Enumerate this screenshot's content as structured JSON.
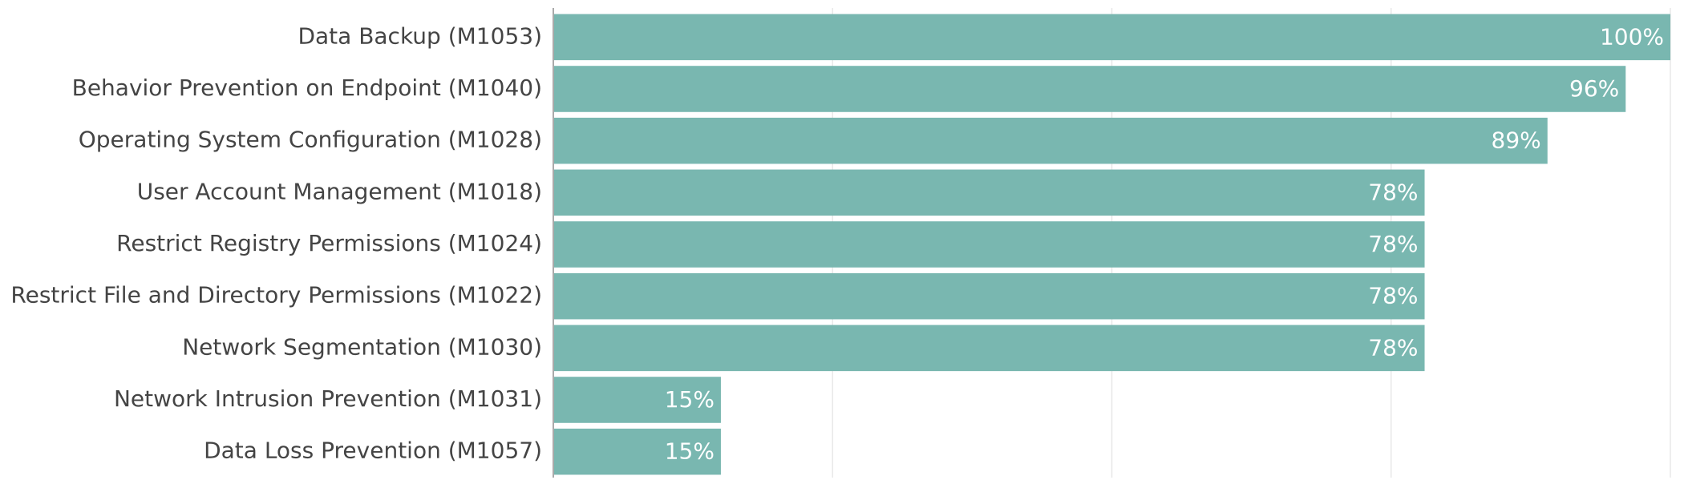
{
  "chart_data": {
    "type": "hbar",
    "categories": [
      "Data Backup (M1053)",
      "Behavior Prevention on Endpoint (M1040)",
      "Operating System Configuration (M1028)",
      "User Account Management (M1018)",
      "Restrict Registry Permissions (M1024)",
      "Restrict File and Directory Permissions (M1022)",
      "Network Segmentation (M1030)",
      "Network Intrusion Prevention (M1031)",
      "Data Loss Prevention (M1057)"
    ],
    "values": [
      100,
      96,
      89,
      78,
      78,
      78,
      78,
      15,
      15
    ],
    "value_labels": [
      "100%",
      "96%",
      "89%",
      "78%",
      "78%",
      "78%",
      "78%",
      "15%",
      "15%"
    ],
    "color": "#79b7b0",
    "xlim": [
      0,
      100
    ],
    "xticks": [
      0,
      25,
      50,
      75,
      100
    ],
    "grid": true
  }
}
